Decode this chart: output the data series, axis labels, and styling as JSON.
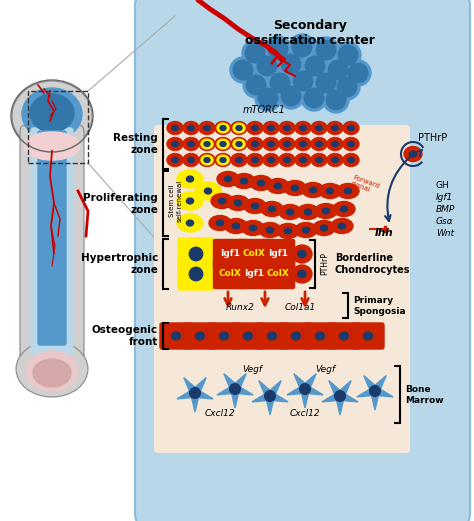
{
  "fig_width": 4.74,
  "fig_height": 5.21,
  "dpi": 100,
  "bg_color": "#ffffff",
  "title": "Secondary\nossification center",
  "zones": [
    "Resting\nzone",
    "Proliferating\nzone",
    "Hypertrophic\nzone",
    "Osteogenic\nfront"
  ],
  "right_labels": [
    "PTHrP",
    "Borderline\nChondrocytes",
    "Primary\nSpongosia",
    "Bone\nMarrow"
  ],
  "signal_labels": [
    "GH",
    "Igf1",
    "BMP",
    "Gsα",
    "Wnt"
  ],
  "mtorc1_label": "mTORC1",
  "ihh_label": "Ihh",
  "forward_signal": "Forward\nsignal",
  "stem_cell_label": "Stem cell\nself-renewal",
  "runx2_label": "Runx2",
  "col1a1_label": "Col1a1",
  "vegf_label": "Vegf",
  "cxcl12_label": "Cxcl12",
  "light_blue_bg": "#b8d8ea",
  "medium_blue": "#5599cc",
  "dark_blue": "#1a3a6b",
  "soc_cell_color": "#4488bb",
  "red_cell": "#cc2200",
  "yellow": "#ffee00",
  "cream_bg": "#f5e8d8",
  "bone_gray": "#c8c8c8",
  "bone_outline": "#777777"
}
